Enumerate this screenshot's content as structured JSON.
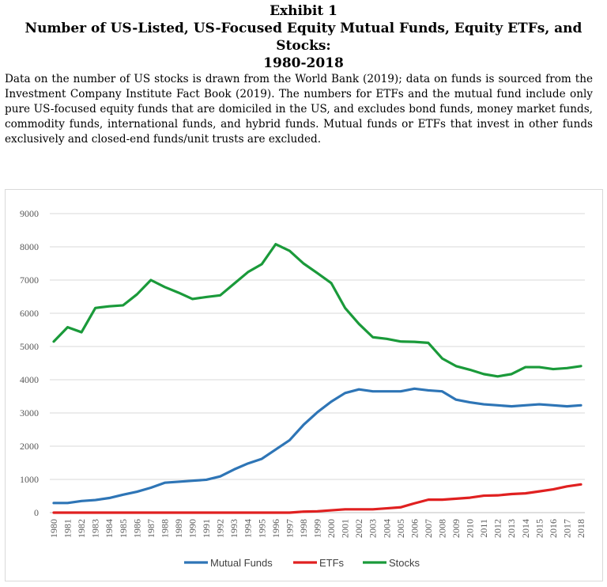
{
  "header": {
    "exhibit": "Exhibit 1",
    "title_lines": [
      "Number of US-Listed, US-Focused Equity Mutual Funds, Equity ETFs, and Stocks:",
      "1980-2018"
    ]
  },
  "note": "Data on the number of US stocks is drawn from the World Bank (2019); data on funds is sourced from the Investment Company Institute Fact Book (2019). The numbers for ETFs and the mutual fund include only pure US-focused equity funds that are domiciled in the US, and excludes bond funds, money market funds, commodity funds, international funds, and hybrid funds. Mutual funds or ETFs that invest in other funds exclusively and closed-end funds/unit trusts are excluded.",
  "chart_data": {
    "type": "line",
    "title": "",
    "xlabel": "",
    "ylabel": "",
    "ylim": [
      0,
      9000
    ],
    "yticks": [
      0,
      1000,
      2000,
      3000,
      4000,
      5000,
      6000,
      7000,
      8000,
      9000
    ],
    "grid": true,
    "legend_position": "bottom",
    "x": [
      "1980",
      "1981",
      "1982",
      "1983",
      "1984",
      "1985",
      "1986",
      "1987",
      "1988",
      "1989",
      "1990",
      "1991",
      "1992",
      "1993",
      "1994",
      "1995",
      "1996",
      "1997",
      "1998",
      "1999",
      "2000",
      "2001",
      "2002",
      "2003",
      "2004",
      "2005",
      "2006",
      "2007",
      "2008",
      "2009",
      "2010",
      "2011",
      "2012",
      "2013",
      "2014",
      "2015",
      "2016",
      "2017",
      "2018"
    ],
    "series": [
      {
        "name": "Mutual Funds",
        "color": "#2e75b6",
        "values": [
          290,
          290,
          350,
          380,
          440,
          540,
          630,
          750,
          900,
          930,
          960,
          990,
          1090,
          1300,
          1480,
          1620,
          1900,
          2180,
          2640,
          3020,
          3340,
          3600,
          3710,
          3650,
          3650,
          3650,
          3730,
          3680,
          3650,
          3400,
          3320,
          3260,
          3230,
          3200,
          3230,
          3260,
          3230,
          3200,
          3230
        ]
      },
      {
        "name": "ETFs",
        "color": "#e02020",
        "values": [
          0,
          0,
          0,
          0,
          0,
          0,
          0,
          0,
          0,
          0,
          0,
          0,
          0,
          0,
          0,
          0,
          0,
          0,
          30,
          40,
          70,
          100,
          100,
          100,
          130,
          160,
          280,
          390,
          390,
          420,
          450,
          510,
          520,
          560,
          580,
          640,
          700,
          790,
          850
        ]
      },
      {
        "name": "Stocks",
        "color": "#1a9a3a",
        "values": [
          5150,
          5580,
          5430,
          6160,
          6210,
          6240,
          6570,
          7000,
          6790,
          6620,
          6430,
          6490,
          6540,
          6890,
          7240,
          7480,
          8080,
          7880,
          7500,
          7210,
          6910,
          6160,
          5680,
          5280,
          5230,
          5150,
          5140,
          5110,
          4640,
          4410,
          4300,
          4170,
          4100,
          4170,
          4380,
          4380,
          4320,
          4350,
          4410
        ]
      }
    ]
  }
}
